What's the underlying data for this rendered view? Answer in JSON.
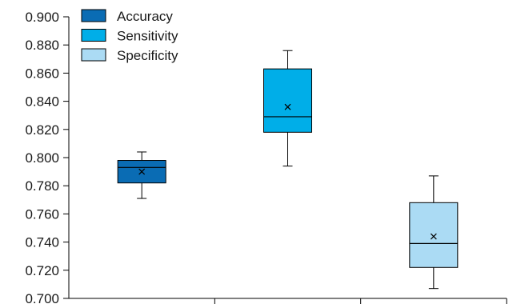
{
  "chart_data": {
    "type": "box",
    "title": "",
    "xlabel": "",
    "ylabel": "",
    "ylim": [
      0.7,
      0.9
    ],
    "y_ticks": [
      "0.700",
      "0.720",
      "0.740",
      "0.760",
      "0.780",
      "0.800",
      "0.820",
      "0.840",
      "0.860",
      "0.880",
      "0.900"
    ],
    "grid": false,
    "legend": {
      "position": "top-left"
    },
    "series": [
      {
        "name": "Accuracy",
        "color": "#0a6cb4",
        "min": 0.771,
        "q1": 0.782,
        "median": 0.793,
        "q3": 0.798,
        "max": 0.804,
        "mean": 0.79
      },
      {
        "name": "Sensitivity",
        "color": "#00aee8",
        "min": 0.794,
        "q1": 0.818,
        "median": 0.829,
        "q3": 0.863,
        "max": 0.876,
        "mean": 0.836
      },
      {
        "name": "Specificity",
        "color": "#abdbf4",
        "min": 0.707,
        "q1": 0.722,
        "median": 0.739,
        "q3": 0.768,
        "max": 0.787,
        "mean": 0.744
      }
    ]
  }
}
